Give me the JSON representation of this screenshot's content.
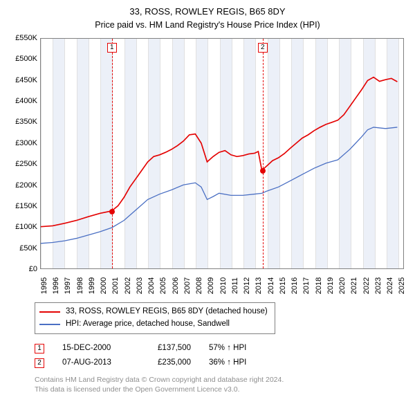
{
  "title": {
    "line1": "33, ROSS, ROWLEY REGIS, B65 8DY",
    "line2": "Price paid vs. HM Land Registry's House Price Index (HPI)"
  },
  "chart": {
    "type": "line",
    "background_color": "#ffffff",
    "plot_border_color": "#808080",
    "grid_color": "#e0e0e0",
    "band_color": "#ecf0f8",
    "xlim": [
      1995.0,
      2025.5
    ],
    "ylim": [
      0,
      550000
    ],
    "ytick_step": 50000,
    "ytick_labels": [
      "£0",
      "£50K",
      "£100K",
      "£150K",
      "£200K",
      "£250K",
      "£300K",
      "£350K",
      "£400K",
      "£450K",
      "£500K",
      "£550K"
    ],
    "xtick_values": [
      1995,
      1996,
      1997,
      1998,
      1999,
      2000,
      2001,
      2002,
      2003,
      2004,
      2005,
      2006,
      2007,
      2008,
      2009,
      2010,
      2011,
      2012,
      2013,
      2014,
      2015,
      2016,
      2017,
      2018,
      2019,
      2020,
      2021,
      2022,
      2023,
      2024,
      2025
    ],
    "series": [
      {
        "name": "33, ROSS, ROWLEY REGIS, B65 8DY (detached house)",
        "color": "#e40303",
        "line_width": 1.7,
        "points": [
          [
            1995.0,
            100000
          ],
          [
            1996.0,
            102000
          ],
          [
            1997.0,
            108000
          ],
          [
            1998.0,
            115000
          ],
          [
            1999.0,
            124000
          ],
          [
            2000.0,
            132000
          ],
          [
            2000.96,
            137500
          ],
          [
            2001.5,
            150000
          ],
          [
            2002.0,
            170000
          ],
          [
            2002.5,
            195000
          ],
          [
            2003.0,
            215000
          ],
          [
            2003.5,
            235000
          ],
          [
            2004.0,
            255000
          ],
          [
            2004.5,
            268000
          ],
          [
            2005.0,
            272000
          ],
          [
            2005.5,
            278000
          ],
          [
            2006.0,
            285000
          ],
          [
            2006.5,
            294000
          ],
          [
            2007.0,
            305000
          ],
          [
            2007.5,
            320000
          ],
          [
            2008.0,
            322000
          ],
          [
            2008.5,
            300000
          ],
          [
            2009.0,
            255000
          ],
          [
            2009.5,
            268000
          ],
          [
            2010.0,
            278000
          ],
          [
            2010.5,
            282000
          ],
          [
            2011.0,
            272000
          ],
          [
            2011.5,
            268000
          ],
          [
            2012.0,
            270000
          ],
          [
            2012.5,
            274000
          ],
          [
            2013.0,
            276000
          ],
          [
            2013.3,
            280000
          ],
          [
            2013.6,
            235000
          ],
          [
            2014.0,
            245000
          ],
          [
            2014.5,
            258000
          ],
          [
            2015.0,
            265000
          ],
          [
            2015.5,
            275000
          ],
          [
            2016.0,
            288000
          ],
          [
            2016.5,
            300000
          ],
          [
            2017.0,
            312000
          ],
          [
            2017.5,
            320000
          ],
          [
            2018.0,
            330000
          ],
          [
            2018.5,
            338000
          ],
          [
            2019.0,
            345000
          ],
          [
            2019.5,
            350000
          ],
          [
            2020.0,
            355000
          ],
          [
            2020.5,
            368000
          ],
          [
            2021.0,
            388000
          ],
          [
            2021.5,
            408000
          ],
          [
            2022.0,
            428000
          ],
          [
            2022.5,
            450000
          ],
          [
            2023.0,
            458000
          ],
          [
            2023.5,
            448000
          ],
          [
            2024.0,
            452000
          ],
          [
            2024.5,
            455000
          ],
          [
            2025.0,
            447000
          ]
        ]
      },
      {
        "name": "HPI: Average price, detached house, Sandwell",
        "color": "#4a6fc3",
        "line_width": 1.3,
        "points": [
          [
            1995.0,
            60000
          ],
          [
            1996.0,
            62000
          ],
          [
            1997.0,
            66000
          ],
          [
            1998.0,
            72000
          ],
          [
            1999.0,
            80000
          ],
          [
            2000.0,
            88000
          ],
          [
            2001.0,
            98000
          ],
          [
            2002.0,
            115000
          ],
          [
            2003.0,
            140000
          ],
          [
            2004.0,
            165000
          ],
          [
            2005.0,
            178000
          ],
          [
            2006.0,
            188000
          ],
          [
            2007.0,
            200000
          ],
          [
            2008.0,
            205000
          ],
          [
            2008.5,
            195000
          ],
          [
            2009.0,
            165000
          ],
          [
            2009.5,
            172000
          ],
          [
            2010.0,
            180000
          ],
          [
            2011.0,
            175000
          ],
          [
            2012.0,
            175000
          ],
          [
            2013.0,
            178000
          ],
          [
            2013.6,
            180000
          ],
          [
            2014.0,
            185000
          ],
          [
            2015.0,
            195000
          ],
          [
            2016.0,
            210000
          ],
          [
            2017.0,
            225000
          ],
          [
            2018.0,
            240000
          ],
          [
            2019.0,
            252000
          ],
          [
            2020.0,
            260000
          ],
          [
            2021.0,
            285000
          ],
          [
            2022.0,
            315000
          ],
          [
            2022.5,
            332000
          ],
          [
            2023.0,
            338000
          ],
          [
            2024.0,
            335000
          ],
          [
            2025.0,
            338000
          ]
        ]
      }
    ],
    "markers": [
      {
        "num": "1",
        "x": 2000.96,
        "y": 137500,
        "date": "15-DEC-2000",
        "price": "£137,500",
        "pct": "57% ↑ HPI",
        "color": "#e40303"
      },
      {
        "num": "2",
        "x": 2013.6,
        "y": 235000,
        "date": "07-AUG-2013",
        "price": "£235,000",
        "pct": "36% ↑ HPI",
        "color": "#e40303"
      }
    ]
  },
  "legend": {
    "items": [
      {
        "label": "33, ROSS, ROWLEY REGIS, B65 8DY (detached house)",
        "color": "#e40303"
      },
      {
        "label": "HPI: Average price, detached house, Sandwell",
        "color": "#4a6fc3"
      }
    ]
  },
  "credits": {
    "line1": "Contains HM Land Registry data © Crown copyright and database right 2024.",
    "line2": "This data is licensed under the Open Government Licence v3.0."
  }
}
